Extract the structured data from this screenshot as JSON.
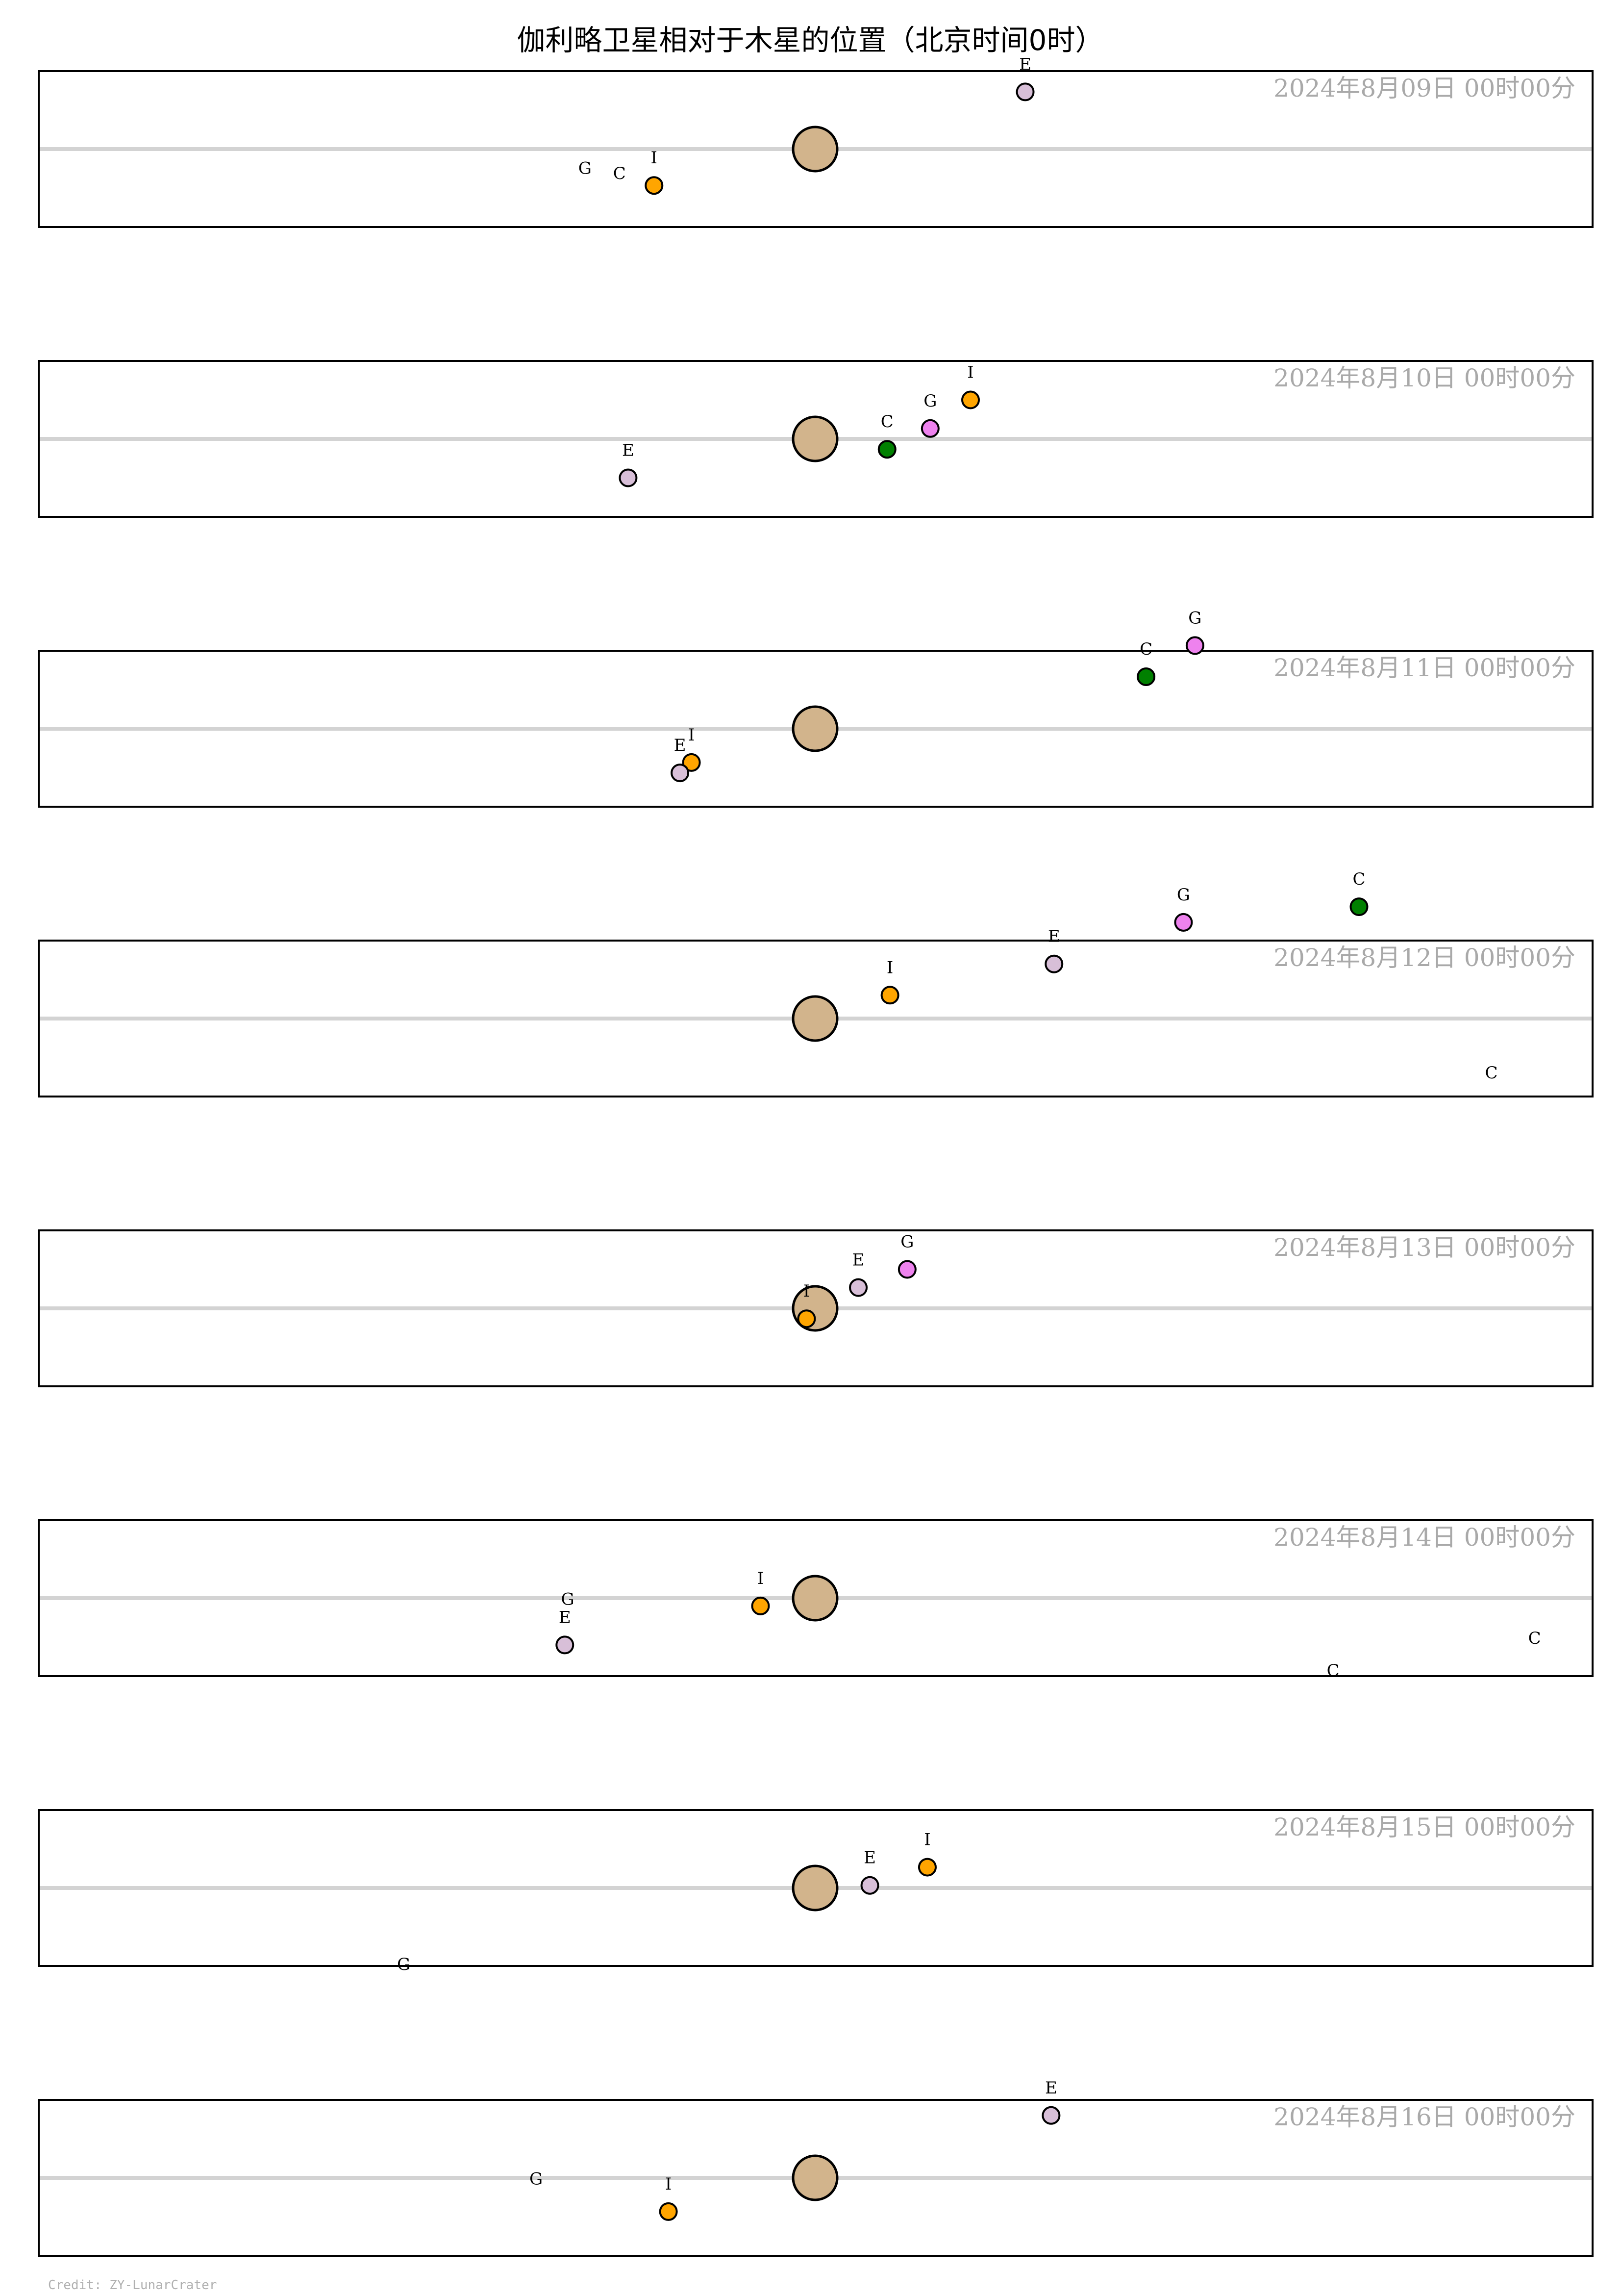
{
  "colors": {
    "jupiter": "#d2b48c",
    "io": "#ffa500",
    "europa": "#d8bfd8",
    "ganymede": "#ee82ee",
    "callisto": "#008000",
    "equator": "#d3d3d3",
    "date_text": "#a9a9a9",
    "credit_text": "#b0b0b0"
  },
  "chart_data": {
    "type": "scatter",
    "title": "伽利略卫星相对于木星的位置（北京时间0时）",
    "credit": "Credit: ZY-LunarCrater",
    "xlim": [
      -27,
      27
    ],
    "ylim": [
      -1.5,
      1.5
    ],
    "moon_colors": {
      "I": "io",
      "E": "europa",
      "G": "ganymede",
      "C": "callisto"
    },
    "panels": [
      {
        "date": "2024年8月09日  00时00分",
        "moons": [
          {
            "label": "I",
            "x": -5.6,
            "y": -0.7
          },
          {
            "label": "E",
            "x": 7.3,
            "y": 1.1
          },
          {
            "label": "G",
            "x": -8.0,
            "y": -0.9,
            "dot": false
          },
          {
            "label": "C",
            "x": -6.8,
            "y": -1.0,
            "dot": false
          }
        ]
      },
      {
        "date": "2024年8月10日  00时00分",
        "moons": [
          {
            "label": "I",
            "x": 5.4,
            "y": 0.75
          },
          {
            "label": "E",
            "x": -6.5,
            "y": -0.75
          },
          {
            "label": "G",
            "x": 4.0,
            "y": 0.2
          },
          {
            "label": "C",
            "x": 2.5,
            "y": -0.2
          }
        ]
      },
      {
        "date": "2024年8月11日  00时00分",
        "moons": [
          {
            "label": "I",
            "x": -4.3,
            "y": -0.65
          },
          {
            "label": "E",
            "x": -4.7,
            "y": -0.85
          },
          {
            "label": "G",
            "x": 13.2,
            "y": 1.6
          },
          {
            "label": "C",
            "x": 11.5,
            "y": 1.0
          }
        ]
      },
      {
        "date": "2024年8月12日  00时00分",
        "moons": [
          {
            "label": "I",
            "x": 2.6,
            "y": 0.45
          },
          {
            "label": "E",
            "x": 8.3,
            "y": 1.05
          },
          {
            "label": "G",
            "x": 12.8,
            "y": 1.85
          },
          {
            "label": "C",
            "x": 18.9,
            "y": 2.15
          }
        ]
      },
      {
        "date": "2024年8月13日  00时00分",
        "moons": [
          {
            "label": "I",
            "x": -0.3,
            "y": -0.2
          },
          {
            "label": "E",
            "x": 1.5,
            "y": 0.4
          },
          {
            "label": "G",
            "x": 3.2,
            "y": 0.75
          },
          {
            "label": "C",
            "x": 23.5,
            "y": 4.0,
            "dot": false
          }
        ]
      },
      {
        "date": "2024年8月14日  00时00分",
        "moons": [
          {
            "label": "I",
            "x": -1.9,
            "y": -0.15
          },
          {
            "label": "E",
            "x": -8.7,
            "y": -0.9
          },
          {
            "label": "G",
            "x": -8.6,
            "y": -0.55,
            "dot": false
          },
          {
            "label": "C",
            "x": 25.0,
            "y": -1.3,
            "dot": false
          }
        ]
      },
      {
        "date": "2024年8月15日  00时00分",
        "moons": [
          {
            "label": "I",
            "x": 3.9,
            "y": 0.4
          },
          {
            "label": "E",
            "x": 1.9,
            "y": 0.05
          },
          {
            "label": "G",
            "x": -14.3,
            "y": -2.0,
            "dot": false
          },
          {
            "label": "C",
            "x": 18.0,
            "y": 3.65,
            "dot": false
          }
        ]
      },
      {
        "date": "2024年8月16日  00时00分",
        "moons": [
          {
            "label": "I",
            "x": -5.1,
            "y": -0.65
          },
          {
            "label": "E",
            "x": 8.2,
            "y": 1.2
          },
          {
            "label": "G",
            "x": -9.7,
            "y": -0.55,
            "dot": false
          }
        ]
      }
    ]
  }
}
